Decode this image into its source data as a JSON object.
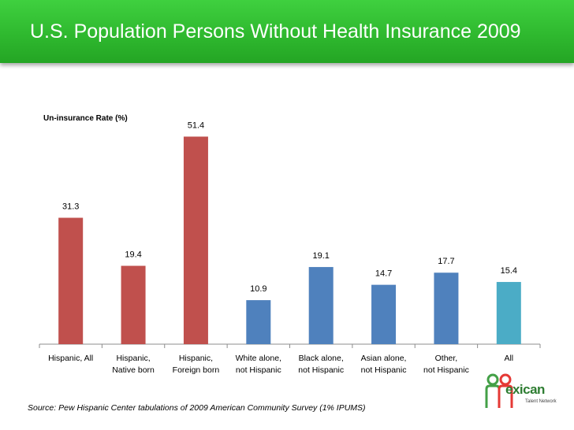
{
  "title": "U.S. Population Persons Without Health Insurance 2009",
  "source": "Source:  Pew Hispanic Center tabulations of 2009 American Community Survey (1% IPUMS)",
  "logo": {
    "text": "exican",
    "subtext": "Talent Network",
    "letter": "M"
  },
  "colors": {
    "hispanic": "#c0504d",
    "non_hispanic": "#4f81bd",
    "all": "#4bacc6",
    "title_bg": "#2fb92f"
  },
  "chart_data": {
    "type": "bar",
    "title": "U.S. Population Persons Without Health Insurance 2009",
    "ylabel": "Un-insurance Rate (%)",
    "xlabel": "",
    "ylim": [
      0,
      55
    ],
    "grid": false,
    "categories": [
      [
        "Hispanic, All"
      ],
      [
        "Hispanic,",
        "Native born"
      ],
      [
        "Hispanic,",
        "Foreign born"
      ],
      [
        "White alone,",
        "not Hispanic"
      ],
      [
        "Black alone,",
        "not Hispanic"
      ],
      [
        "Asian alone,",
        "not Hispanic"
      ],
      [
        "Other,",
        "not Hispanic"
      ],
      [
        "All"
      ]
    ],
    "values": [
      31.3,
      19.4,
      51.4,
      10.9,
      19.1,
      14.7,
      17.7,
      15.4
    ],
    "value_labels": [
      "31.3",
      "19.4",
      "51.4",
      "10.9",
      "19.1",
      "14.7",
      "17.7",
      "15.4"
    ],
    "bar_colors": [
      "#c0504d",
      "#c0504d",
      "#c0504d",
      "#4f81bd",
      "#4f81bd",
      "#4f81bd",
      "#4f81bd",
      "#4bacc6"
    ]
  }
}
